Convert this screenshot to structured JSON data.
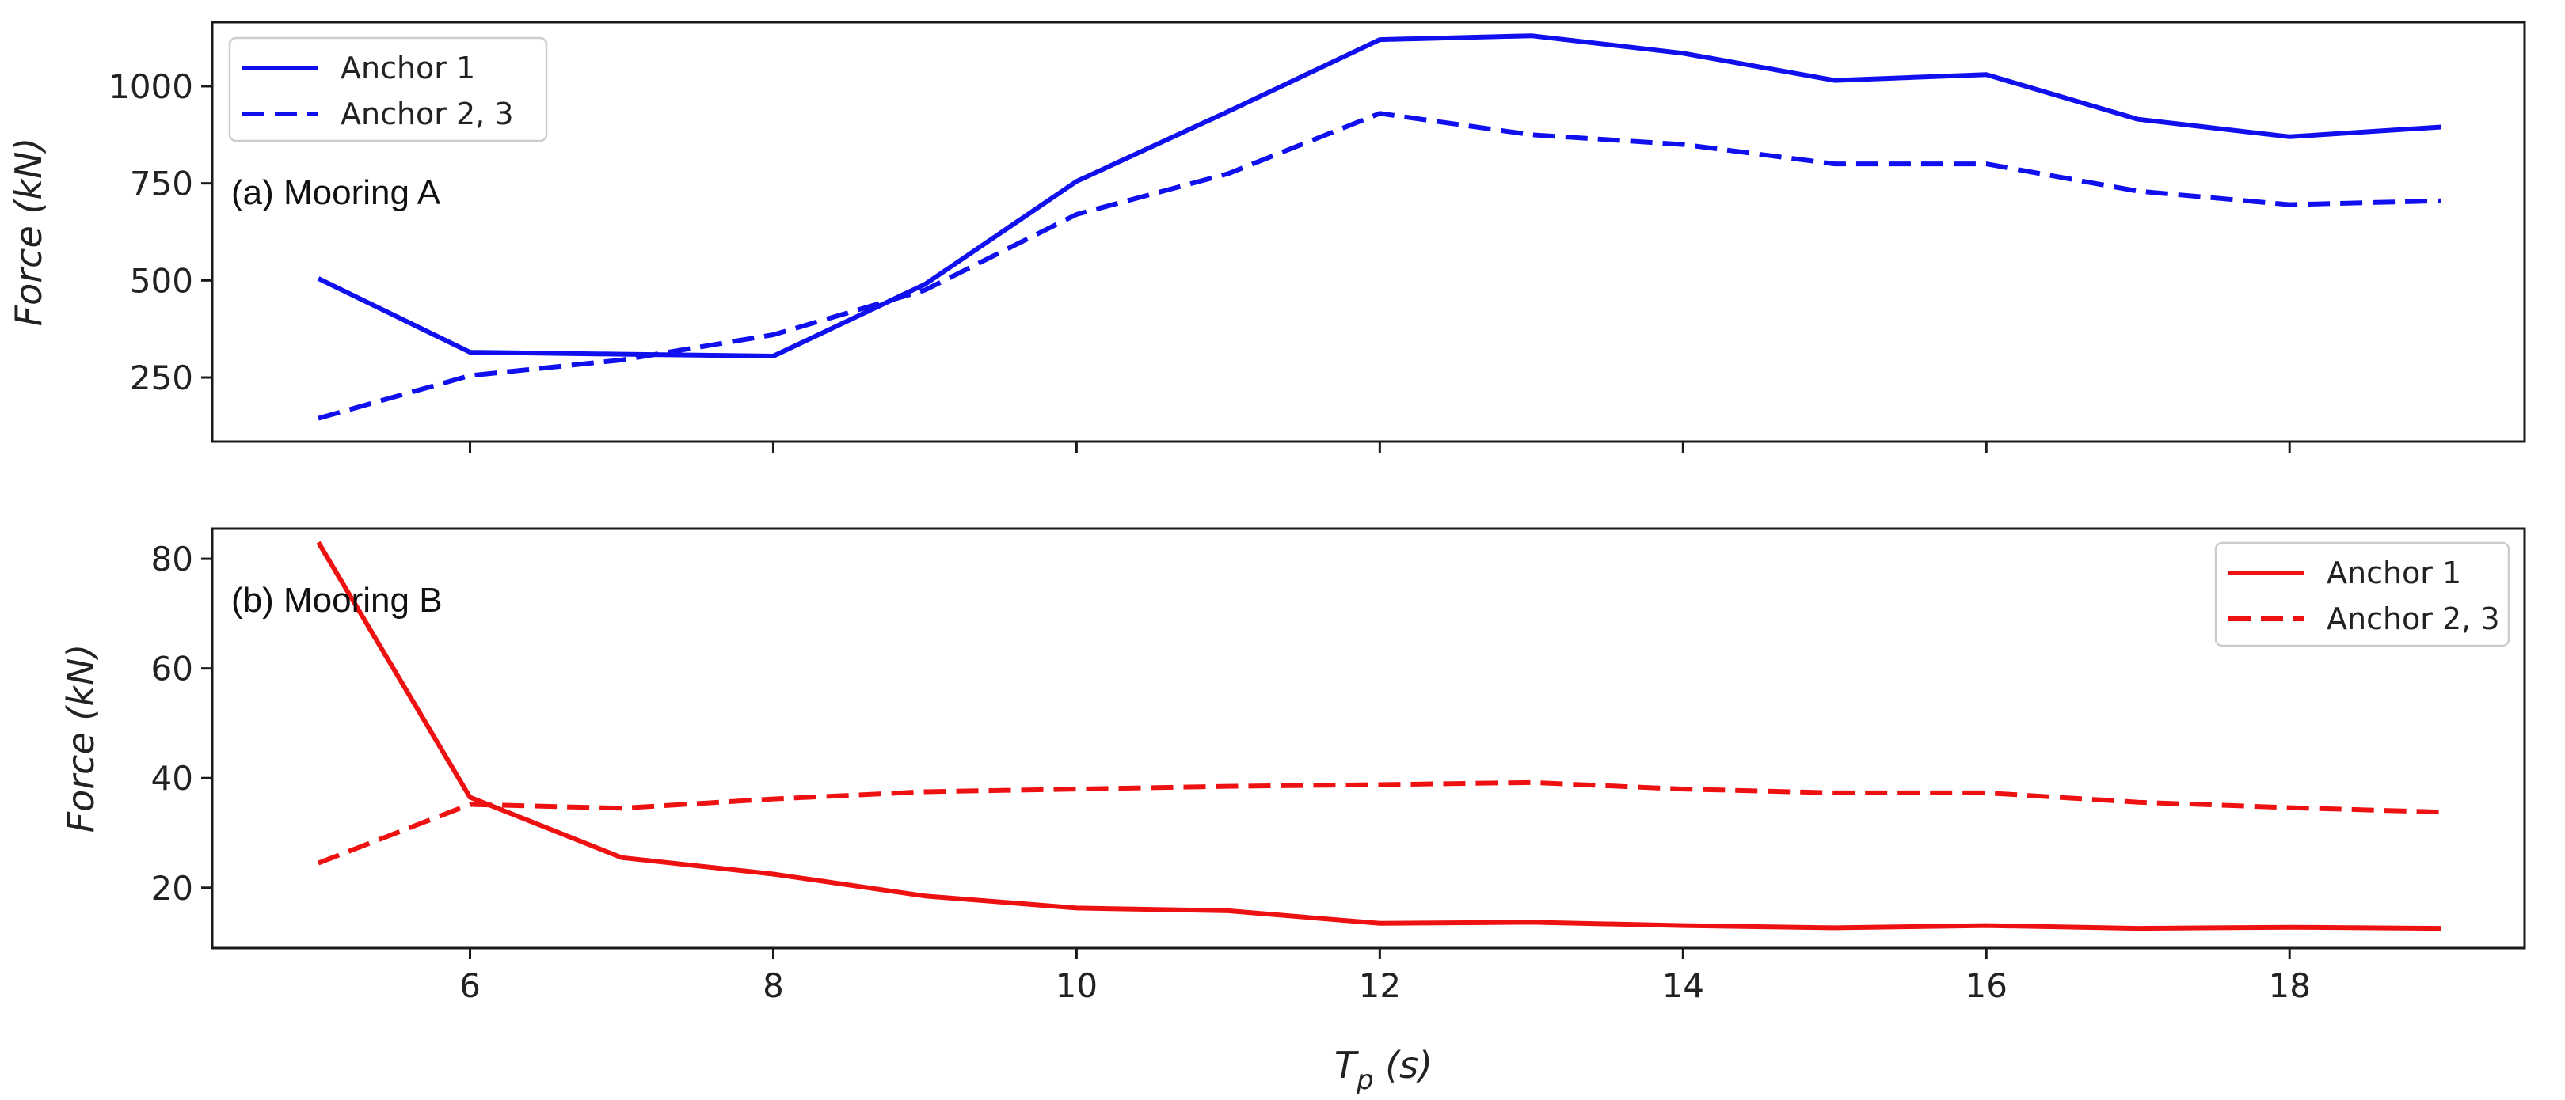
{
  "chart_data": [
    {
      "type": "line",
      "title": "",
      "panel_label": "(a) Mooring A",
      "xlabel": "",
      "ylabel": "Force (kN)",
      "xlim": [
        4.3,
        19.55
      ],
      "ylim": [
        85,
        1165
      ],
      "xticks": [
        6,
        8,
        10,
        12,
        14,
        16,
        18
      ],
      "yticks": [
        250,
        500,
        750,
        1000
      ],
      "ytick_labels": [
        "250",
        "500",
        "750",
        "1000"
      ],
      "show_xtick_labels": false,
      "grid": false,
      "legend": "top-left",
      "color": "#1010ee",
      "series": [
        {
          "name": "Anchor 1",
          "style": "solid",
          "x": [
            5,
            6,
            7,
            8,
            9,
            10,
            11,
            12,
            13,
            14,
            15,
            16,
            17,
            18,
            19
          ],
          "values": [
            505,
            315,
            310,
            305,
            490,
            755,
            935,
            1120,
            1130,
            1085,
            1015,
            1030,
            915,
            870,
            895
          ]
        },
        {
          "name": "Anchor 2, 3",
          "style": "dashed",
          "x": [
            5,
            6,
            7,
            8,
            9,
            10,
            11,
            12,
            13,
            14,
            15,
            16,
            17,
            18,
            19
          ],
          "values": [
            145,
            255,
            295,
            360,
            475,
            670,
            775,
            930,
            875,
            850,
            800,
            800,
            730,
            695,
            705
          ]
        }
      ]
    },
    {
      "type": "line",
      "title": "",
      "panel_label": "(b) Mooring B",
      "xlabel": "T_p (s)",
      "ylabel": "Force (kN)",
      "xlim": [
        4.3,
        19.55
      ],
      "ylim": [
        9,
        85.5
      ],
      "xticks": [
        6,
        8,
        10,
        12,
        14,
        16,
        18
      ],
      "xtick_labels": [
        "6",
        "8",
        "10",
        "12",
        "14",
        "16",
        "18"
      ],
      "yticks": [
        20,
        40,
        60,
        80
      ],
      "ytick_labels": [
        "20",
        "40",
        "60",
        "80"
      ],
      "show_xtick_labels": true,
      "grid": false,
      "legend": "top-right",
      "color": "#ee1111",
      "series": [
        {
          "name": "Anchor 1",
          "style": "solid",
          "x": [
            5,
            6,
            7,
            8,
            9,
            10,
            11,
            12,
            13,
            14,
            15,
            16,
            17,
            18,
            19
          ],
          "values": [
            83,
            36.5,
            25.5,
            22.5,
            18.5,
            16.3,
            15.8,
            13.5,
            13.7,
            13.1,
            12.7,
            13.1,
            12.6,
            12.8,
            12.6
          ]
        },
        {
          "name": "Anchor 2, 3",
          "style": "dashed",
          "x": [
            5,
            6,
            7,
            8,
            9,
            10,
            11,
            12,
            13,
            14,
            15,
            16,
            17,
            18,
            19
          ],
          "values": [
            24.5,
            35.2,
            34.5,
            36.2,
            37.5,
            38,
            38.5,
            38.8,
            39.2,
            38,
            37.3,
            37.3,
            35.6,
            34.6,
            33.8
          ]
        }
      ]
    }
  ]
}
